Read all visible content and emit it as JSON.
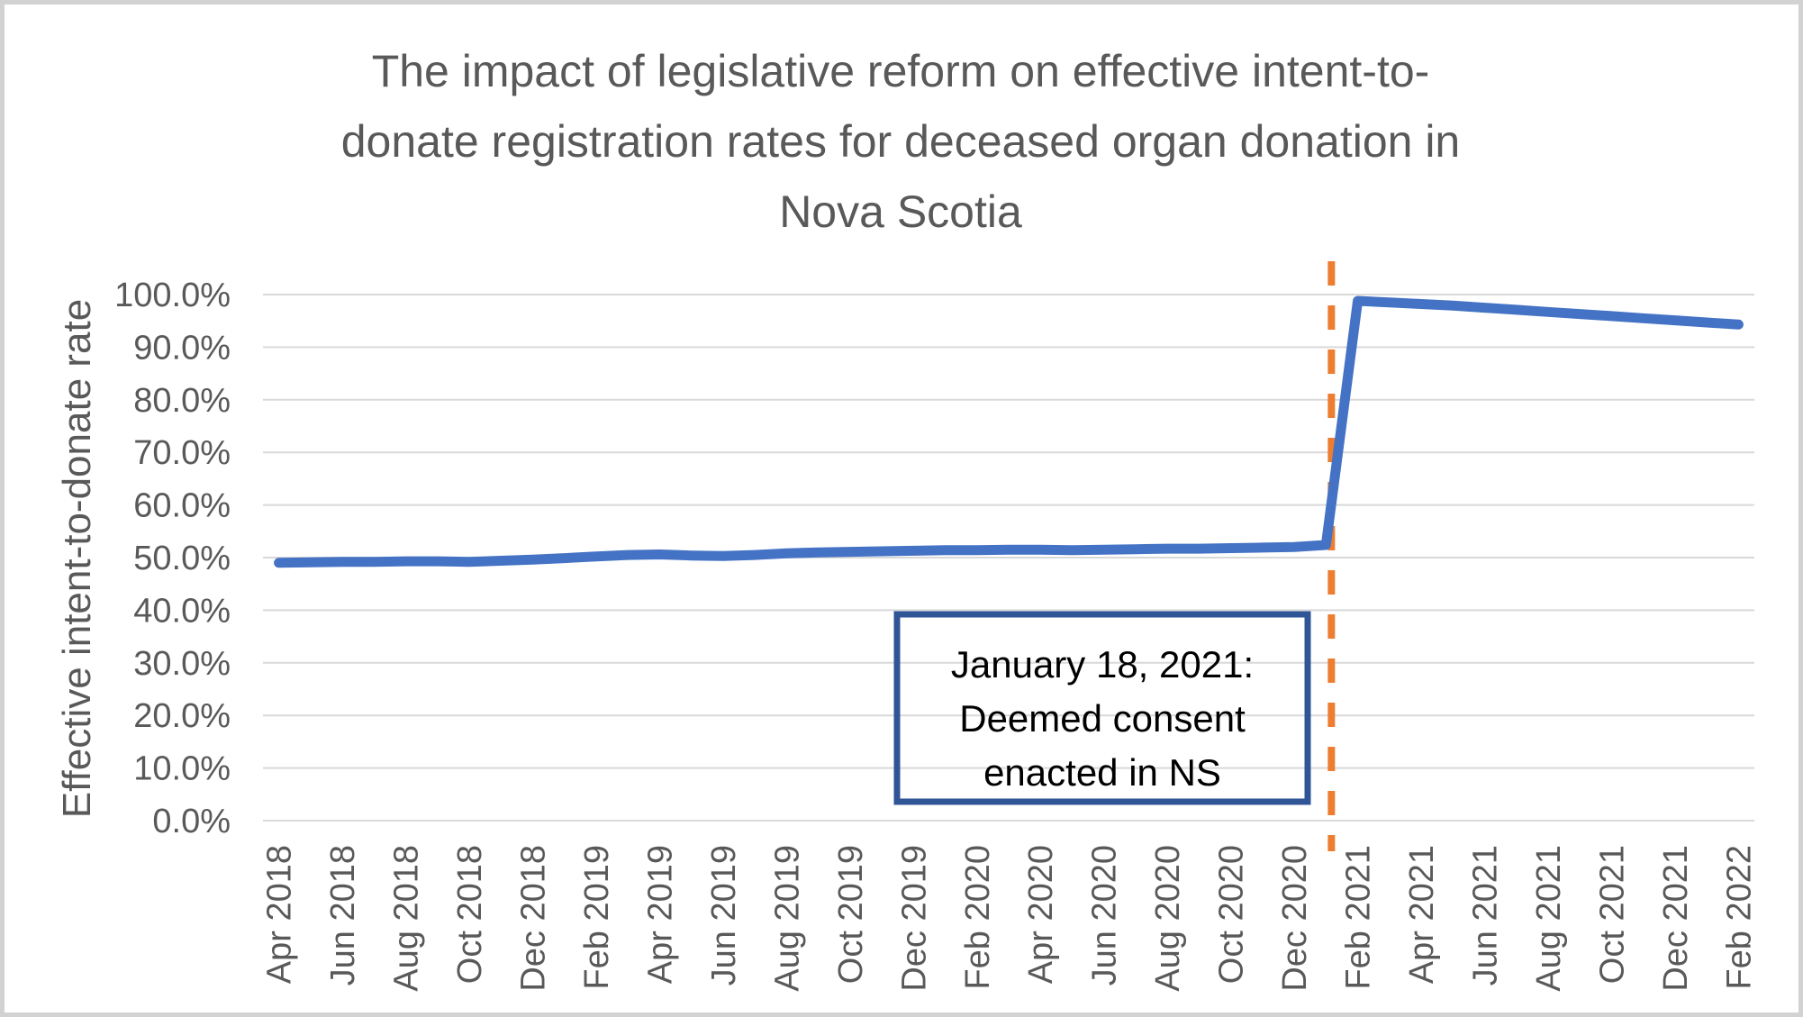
{
  "chart_data": {
    "type": "line",
    "title": "The impact of legislative reform on effective intent-to-donate registration rates for deceased organ donation in Nova Scotia",
    "title_lines": [
      "The impact of legislative reform on effective intent-to-",
      "donate registration rates for deceased organ donation in",
      "Nova Scotia"
    ],
    "xlabel": "",
    "ylabel": "Effective intent-to-donate rate",
    "ylim": [
      0,
      100
    ],
    "ytick_step": 10,
    "ytick_suffix": "%",
    "ytick_decimals": 1,
    "xtick_every": 2,
    "grid": true,
    "legend": "none",
    "x": [
      "Apr 2018",
      "May 2018",
      "Jun 2018",
      "Jul 2018",
      "Aug 2018",
      "Sep 2018",
      "Oct 2018",
      "Nov 2018",
      "Dec 2018",
      "Jan 2019",
      "Feb 2019",
      "Mar 2019",
      "Apr 2019",
      "May 2019",
      "Jun 2019",
      "Jul 2019",
      "Aug 2019",
      "Sep 2019",
      "Oct 2019",
      "Nov 2019",
      "Dec 2019",
      "Jan 2020",
      "Feb 2020",
      "Mar 2020",
      "Apr 2020",
      "May 2020",
      "Jun 2020",
      "Jul 2020",
      "Aug 2020",
      "Sep 2020",
      "Oct 2020",
      "Nov 2020",
      "Dec 2020",
      "Jan 2021",
      "Feb 2021",
      "Mar 2021",
      "Apr 2021",
      "May 2021",
      "Jun 2021",
      "Jul 2021",
      "Aug 2021",
      "Sep 2021",
      "Oct 2021",
      "Nov 2021",
      "Dec 2021",
      "Jan 2022",
      "Feb 2022"
    ],
    "series": [
      {
        "name": "Effective intent-to-donate rate",
        "values": [
          49.0,
          49.1,
          49.2,
          49.2,
          49.3,
          49.3,
          49.2,
          49.4,
          49.6,
          49.9,
          50.2,
          50.5,
          50.6,
          50.4,
          50.3,
          50.5,
          50.8,
          51.0,
          51.1,
          51.2,
          51.3,
          51.4,
          51.4,
          51.5,
          51.5,
          51.4,
          51.5,
          51.6,
          51.7,
          51.7,
          51.8,
          51.9,
          52.0,
          52.4,
          98.8,
          98.5,
          98.2,
          97.9,
          97.5,
          97.1,
          96.7,
          96.3,
          95.9,
          95.5,
          95.1,
          94.7,
          94.3
        ]
      }
    ],
    "reform_line": {
      "date": "January 18, 2021",
      "between": [
        "Jan 2021",
        "Feb 2021"
      ],
      "style": "dashed"
    },
    "annotation": {
      "lines": [
        "January 18, 2021:",
        "Deemed consent",
        "enacted in NS"
      ]
    },
    "colors": {
      "series_line": "#4472C4",
      "reform_line": "#ED7D31",
      "gridline": "#D9D9D9",
      "axis_text": "#595959",
      "title_text": "#595959",
      "annotation_border": "#2F5597",
      "annotation_text": "#000000",
      "frame_border": "#D2D2D2",
      "background": "#FFFFFF"
    }
  }
}
